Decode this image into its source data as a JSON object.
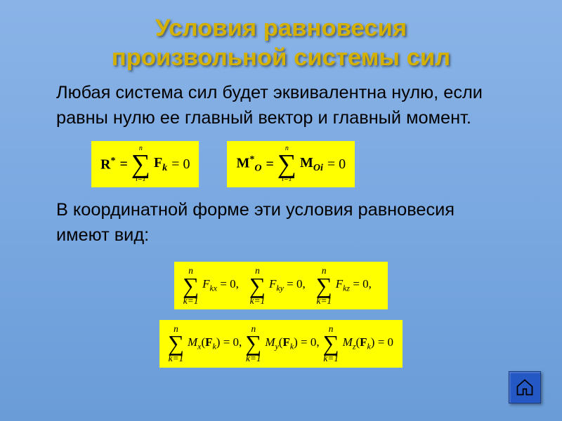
{
  "colors": {
    "background_top": "#8ab4e8",
    "background_bottom": "#6a9cd8",
    "title_color": "#d4b000",
    "title_shadow": "rgba(0,0,0,0.5)",
    "body_text_color": "#000000",
    "formula_bg": "#ffff00",
    "formula_text": "#000000",
    "button_bg": "#2458c5",
    "button_border": "#1a3a80",
    "button_icon": "#000000"
  },
  "typography": {
    "title_fontsize_pt": 26,
    "body_fontsize_pt": 19,
    "formula_large_fontsize_pt": 20,
    "formula_small_fontsize_pt": 17,
    "sigma_top_fontsize_pt": 10,
    "sigma_bot_fontsize_pt": 10,
    "font_family_body": "Arial, sans-serif",
    "font_family_formula": "Times New Roman, serif"
  },
  "title": {
    "line1": "Условия равновесия",
    "line2": "произвольной системы сил"
  },
  "paragraph1": {
    "line1": "Любая система сил будет эквивалентна нулю, если",
    "line2": "равны нулю ее главный вектор и главный момент."
  },
  "paragraph2": {
    "line1": "В координатной форме эти условия равновесия",
    "line2": "имеют вид:"
  },
  "equations": {
    "row1": {
      "eq1": {
        "lhs_symbol": "R",
        "lhs_super": "*",
        "sum_upper": "n",
        "sum_lower": "i=1",
        "term_symbol": "F",
        "term_sub": "k",
        "rhs": "= 0"
      },
      "eq2": {
        "lhs_symbol": "M",
        "lhs_super": "*",
        "lhs_sub": "O",
        "sum_upper": "n",
        "sum_lower": "i=1",
        "term_symbol": "M",
        "term_sub": "Oi",
        "rhs": "= 0"
      }
    },
    "row2": {
      "sum_upper": "n",
      "sum_lower": "k=1",
      "terms": [
        {
          "symbol": "F",
          "sub": "kx",
          "tail": " = 0,"
        },
        {
          "symbol": "F",
          "sub": "ky",
          "tail": " = 0,"
        },
        {
          "symbol": "F",
          "sub": "kz",
          "tail": " = 0,"
        }
      ]
    },
    "row3": {
      "sum_upper": "n",
      "sum_lower": "k=1",
      "terms": [
        {
          "symbol": "M",
          "sub": "x",
          "arg_symbol": "F",
          "arg_sub": "k",
          "tail": " = 0,"
        },
        {
          "symbol": "M",
          "sub": "y",
          "arg_symbol": "F",
          "arg_sub": "k",
          "tail": " = 0,"
        },
        {
          "symbol": "M",
          "sub": "z",
          "arg_symbol": "F",
          "arg_sub": "k",
          "tail": " = 0"
        }
      ]
    }
  },
  "home_button": {
    "icon_name": "home-icon"
  }
}
